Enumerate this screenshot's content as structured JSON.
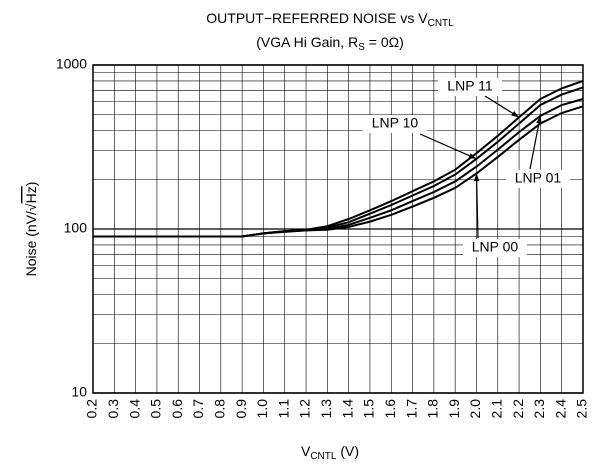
{
  "chart_data": {
    "type": "line",
    "title": [
      "OUTPUT−REFERRED NOISE vs V",
      "CNTL"
    ],
    "subtitle": [
      "(VGA Hi Gain, R",
      "S",
      " = 0Ω)"
    ],
    "x_label": [
      "V",
      "CNTL",
      " (V)"
    ],
    "y_label": [
      "Noise (nV/√",
      "Hz",
      ")"
    ],
    "log_y": true,
    "grid": true,
    "x": [
      0.2,
      0.3,
      0.4,
      0.5,
      0.6,
      0.7,
      0.8,
      0.9,
      1.0,
      1.1,
      1.2,
      1.3,
      1.4,
      1.5,
      1.6,
      1.7,
      1.8,
      1.9,
      2.0,
      2.1,
      2.2,
      2.3,
      2.4,
      2.5
    ],
    "xlim": [
      0.2,
      2.5
    ],
    "xticks": [
      0.2,
      0.3,
      0.4,
      0.5,
      0.6,
      0.7,
      0.8,
      0.9,
      {
        "value": 1,
        "label": "1.0"
      },
      1.1,
      1.2,
      1.3,
      1.4,
      1.5,
      1.6,
      1.7,
      1.8,
      1.9,
      {
        "value": 2,
        "label": "2.0"
      },
      2.1,
      2.2,
      2.3,
      2.4,
      2.5
    ],
    "ylim": [
      10,
      1000
    ],
    "yticks": [
      10,
      100,
      1000
    ],
    "minor_yticks": [
      20,
      30,
      40,
      50,
      60,
      70,
      80,
      90,
      200,
      300,
      400,
      500,
      600,
      700,
      800,
      900
    ],
    "series": [
      {
        "name": "LNP 11",
        "color": "#000000",
        "values": [
          90,
          90,
          90,
          90,
          90,
          90,
          90,
          90,
          94,
          97,
          99,
          104,
          115,
          130,
          148,
          170,
          195,
          230,
          290,
          370,
          480,
          620,
          720,
          800
        ]
      },
      {
        "name": "LNP 10",
        "color": "#000000",
        "values": [
          90,
          90,
          90,
          90,
          90,
          90,
          90,
          90,
          94,
          97,
          99,
          102,
          110,
          124,
          140,
          160,
          183,
          215,
          268,
          340,
          440,
          570,
          660,
          730
        ]
      },
      {
        "name": "LNP 01",
        "color": "#000000",
        "values": [
          90,
          90,
          90,
          90,
          90,
          90,
          90,
          90,
          94,
          97,
          98,
          100,
          106,
          117,
          130,
          148,
          168,
          195,
          240,
          305,
          390,
          490,
          570,
          620
        ]
      },
      {
        "name": "LNP 00",
        "color": "#000000",
        "values": [
          90,
          90,
          90,
          90,
          90,
          90,
          90,
          90,
          94,
          96,
          98,
          99,
          103,
          111,
          122,
          137,
          155,
          178,
          218,
          275,
          350,
          440,
          510,
          560
        ]
      }
    ]
  }
}
